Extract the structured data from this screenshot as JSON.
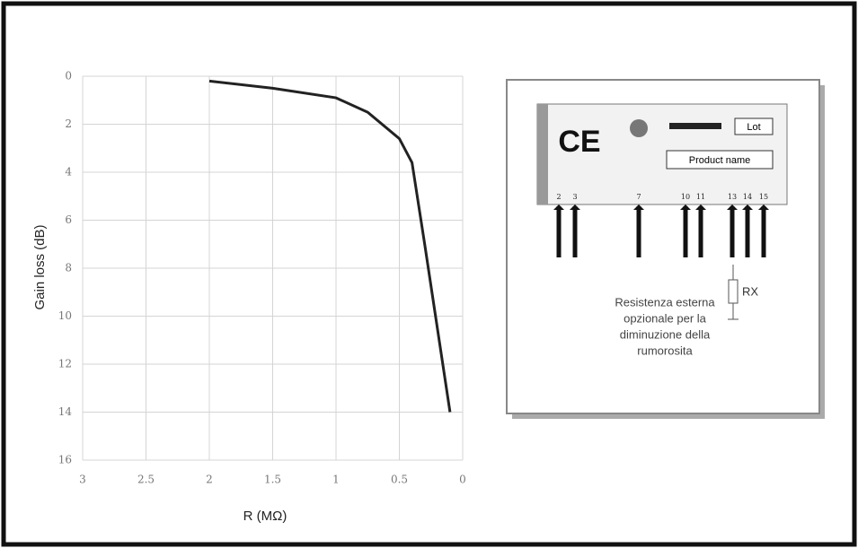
{
  "chart_data": {
    "type": "line",
    "x_label": "R (MΩ)",
    "y_label": "Gain loss (dB)",
    "x": [
      2,
      1.5,
      1,
      0.75,
      0.5,
      0.4,
      0.3,
      0.2,
      0.1
    ],
    "series": [
      {
        "name": "Gain loss",
        "color": "#222222",
        "values": [
          0.2,
          0.5,
          0.9,
          1.5,
          2.6,
          3.6,
          7,
          10.5,
          14
        ]
      }
    ],
    "xlim": [
      3,
      0
    ],
    "xticks": [
      3,
      2.5,
      2,
      1.5,
      1,
      0.5,
      0
    ],
    "ylim": [
      0,
      16
    ],
    "yticks": [
      0,
      2,
      4,
      6,
      8,
      10,
      12,
      14,
      16
    ],
    "grid": true
  },
  "diagram": {
    "ce": "CE",
    "lot": "Lot",
    "product": "Product name",
    "rx": "RX",
    "pins": [
      "2",
      "3",
      "7",
      "10",
      "11",
      "13",
      "14",
      "15"
    ],
    "note": [
      "Resistenza esterna",
      "opzionale per la",
      "diminuzione della",
      "rumorosita"
    ]
  }
}
